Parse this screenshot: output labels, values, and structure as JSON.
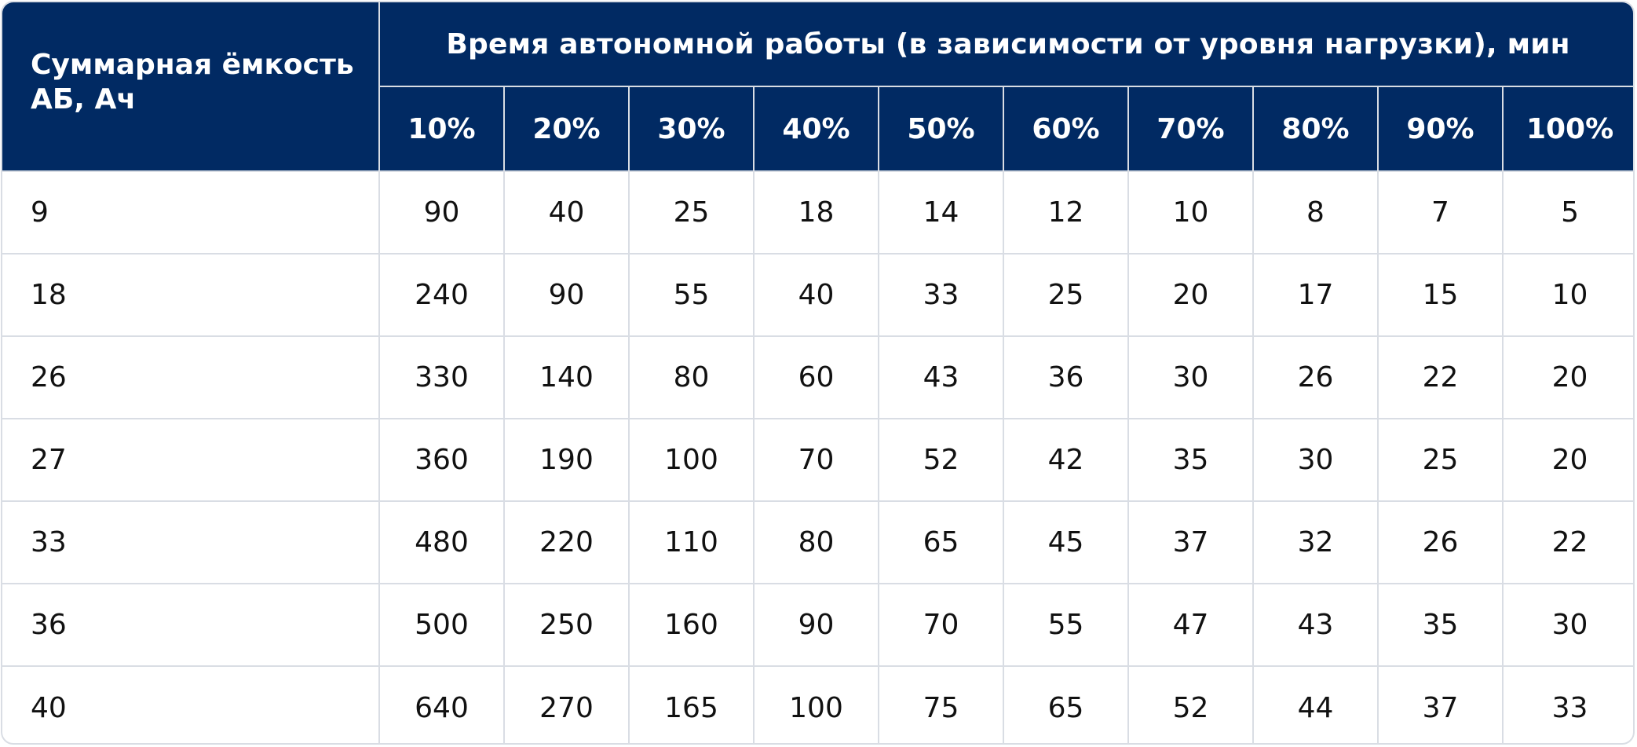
{
  "table": {
    "capacity_header": "Суммарная ёмкость АБ, Ач",
    "group_header": "Время автономной работы (в зависимости от уровня нагрузки), мин",
    "load_levels": [
      "10%",
      "20%",
      "30%",
      "40%",
      "50%",
      "60%",
      "70%",
      "80%",
      "90%",
      "100%"
    ],
    "rows": [
      {
        "capacity": "9",
        "values": [
          "90",
          "40",
          "25",
          "18",
          "14",
          "12",
          "10",
          "8",
          "7",
          "5"
        ]
      },
      {
        "capacity": "18",
        "values": [
          "240",
          "90",
          "55",
          "40",
          "33",
          "25",
          "20",
          "17",
          "15",
          "10"
        ]
      },
      {
        "capacity": "26",
        "values": [
          "330",
          "140",
          "80",
          "60",
          "43",
          "36",
          "30",
          "26",
          "22",
          "20"
        ]
      },
      {
        "capacity": "27",
        "values": [
          "360",
          "190",
          "100",
          "70",
          "52",
          "42",
          "35",
          "30",
          "25",
          "20"
        ]
      },
      {
        "capacity": "33",
        "values": [
          "480",
          "220",
          "110",
          "80",
          "65",
          "45",
          "37",
          "32",
          "26",
          "22"
        ]
      },
      {
        "capacity": "36",
        "values": [
          "500",
          "250",
          "160",
          "90",
          "70",
          "55",
          "47",
          "43",
          "35",
          "30"
        ]
      },
      {
        "capacity": "40",
        "values": [
          "640",
          "270",
          "165",
          "100",
          "75",
          "65",
          "52",
          "44",
          "37",
          "33"
        ]
      }
    ]
  },
  "colors": {
    "header_bg": "#012a63",
    "header_text": "#ffffff",
    "grid_line": "#d9dde4",
    "body_text": "#111111"
  }
}
